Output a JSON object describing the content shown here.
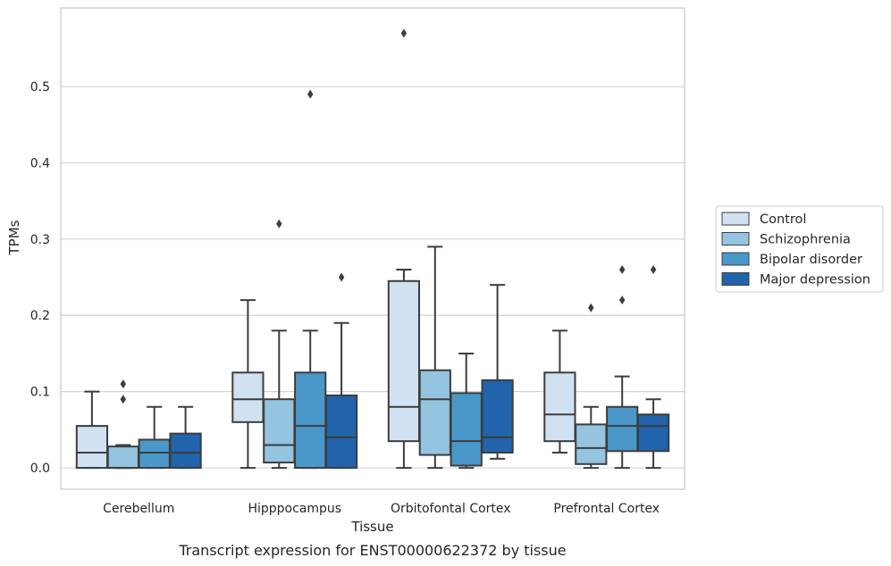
{
  "chart_data": {
    "type": "boxplot",
    "title": "",
    "caption": "Transcript expression for ENST00000622372 by tissue",
    "xlabel": "Tissue",
    "ylabel": "TPMs",
    "ylim": [
      -0.028,
      0.603
    ],
    "yticks": [
      0.0,
      0.1,
      0.2,
      0.3,
      0.4,
      0.5
    ],
    "ytick_labels": [
      "0.0",
      "0.1",
      "0.2",
      "0.3",
      "0.4",
      "0.5"
    ],
    "grid": "horizontal",
    "legend_position": "right",
    "categories": [
      "Cerebellum",
      "Hipppocampus",
      "Orbitofontal Cortex",
      "Prefrontal Cortex"
    ],
    "series": [
      {
        "name": "Control",
        "color": "#d0e1f2",
        "boxes": [
          {
            "whislo": 0.0,
            "q1": 0.0,
            "med": 0.02,
            "q3": 0.055,
            "whishi": 0.1,
            "fliers": []
          },
          {
            "whislo": 0.0,
            "q1": 0.06,
            "med": 0.09,
            "q3": 0.125,
            "whishi": 0.22,
            "fliers": []
          },
          {
            "whislo": 0.0,
            "q1": 0.035,
            "med": 0.08,
            "q3": 0.245,
            "whishi": 0.26,
            "fliers": [
              0.57
            ]
          },
          {
            "whislo": 0.02,
            "q1": 0.035,
            "med": 0.07,
            "q3": 0.125,
            "whishi": 0.18,
            "fliers": []
          }
        ]
      },
      {
        "name": "Schizophrenia",
        "color": "#94c4df",
        "boxes": [
          {
            "whislo": 0.0,
            "q1": 0.0,
            "med": 0.0,
            "q3": 0.028,
            "whishi": 0.03,
            "fliers": [
              0.09,
              0.11
            ]
          },
          {
            "whislo": 0.0,
            "q1": 0.007,
            "med": 0.03,
            "q3": 0.09,
            "whishi": 0.18,
            "fliers": [
              0.32
            ]
          },
          {
            "whislo": 0.0,
            "q1": 0.017,
            "med": 0.09,
            "q3": 0.128,
            "whishi": 0.29,
            "fliers": []
          },
          {
            "whislo": 0.0,
            "q1": 0.005,
            "med": 0.026,
            "q3": 0.057,
            "whishi": 0.08,
            "fliers": [
              0.21
            ]
          }
        ]
      },
      {
        "name": "Bipolar disorder",
        "color": "#4a98c9",
        "boxes": [
          {
            "whislo": 0.0,
            "q1": 0.0,
            "med": 0.02,
            "q3": 0.037,
            "whishi": 0.08,
            "fliers": []
          },
          {
            "whislo": 0.0,
            "q1": 0.0,
            "med": 0.055,
            "q3": 0.125,
            "whishi": 0.18,
            "fliers": [
              0.49
            ]
          },
          {
            "whislo": 0.0,
            "q1": 0.003,
            "med": 0.035,
            "q3": 0.098,
            "whishi": 0.15,
            "fliers": []
          },
          {
            "whislo": 0.0,
            "q1": 0.022,
            "med": 0.055,
            "q3": 0.08,
            "whishi": 0.12,
            "fliers": [
              0.22,
              0.26
            ]
          }
        ]
      },
      {
        "name": "Major depression",
        "color": "#2164ab",
        "boxes": [
          {
            "whislo": 0.0,
            "q1": 0.0,
            "med": 0.02,
            "q3": 0.045,
            "whishi": 0.08,
            "fliers": []
          },
          {
            "whislo": 0.0,
            "q1": 0.0,
            "med": 0.04,
            "q3": 0.095,
            "whishi": 0.19,
            "fliers": [
              0.25
            ]
          },
          {
            "whislo": 0.012,
            "q1": 0.02,
            "med": 0.04,
            "q3": 0.115,
            "whishi": 0.24,
            "fliers": []
          },
          {
            "whislo": 0.0,
            "q1": 0.022,
            "med": 0.055,
            "q3": 0.07,
            "whishi": 0.09,
            "fliers": [
              0.26
            ]
          }
        ]
      }
    ]
  }
}
